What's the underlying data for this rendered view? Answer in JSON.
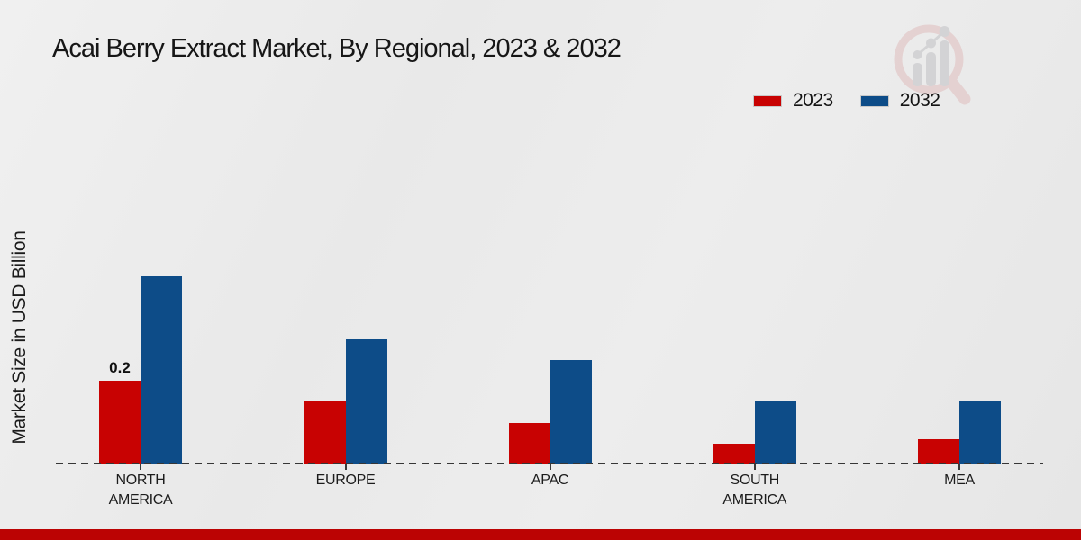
{
  "page": {
    "title": "Acai Berry Extract Market, By Regional, 2023 & 2032",
    "footer_bar_color": "#bb0303"
  },
  "colors": {
    "background": "#e9e9e9",
    "axis": "#363636",
    "series_2023": "#c80202",
    "series_2032": "#0d4c88"
  },
  "legend": {
    "items": [
      {
        "label": "2023",
        "color": "#c80202"
      },
      {
        "label": "2032",
        "color": "#0d4c88"
      }
    ]
  },
  "watermark": {
    "name": "market-research-future-logo"
  },
  "chart_data": {
    "type": "bar",
    "title": "Acai Berry Extract Market, By Regional, 2023 & 2032",
    "xlabel": "",
    "ylabel": "Market Size in USD Billion",
    "categories": [
      "NORTH AMERICA",
      "EUROPE",
      "APAC",
      "SOUTH AMERICA",
      "MEA"
    ],
    "series": [
      {
        "name": "2023",
        "color": "#c80202",
        "values": [
          0.2,
          0.15,
          0.1,
          0.05,
          0.06
        ]
      },
      {
        "name": "2032",
        "color": "#0d4c88",
        "values": [
          0.45,
          0.3,
          0.25,
          0.15,
          0.15
        ]
      }
    ],
    "annotations": [
      {
        "text": "0.2",
        "category_index": 0,
        "series_index": 0
      }
    ],
    "ylim": [
      0,
      0.5
    ],
    "grid": false,
    "legend_position": "top-right",
    "baseline_style": "dashed"
  }
}
